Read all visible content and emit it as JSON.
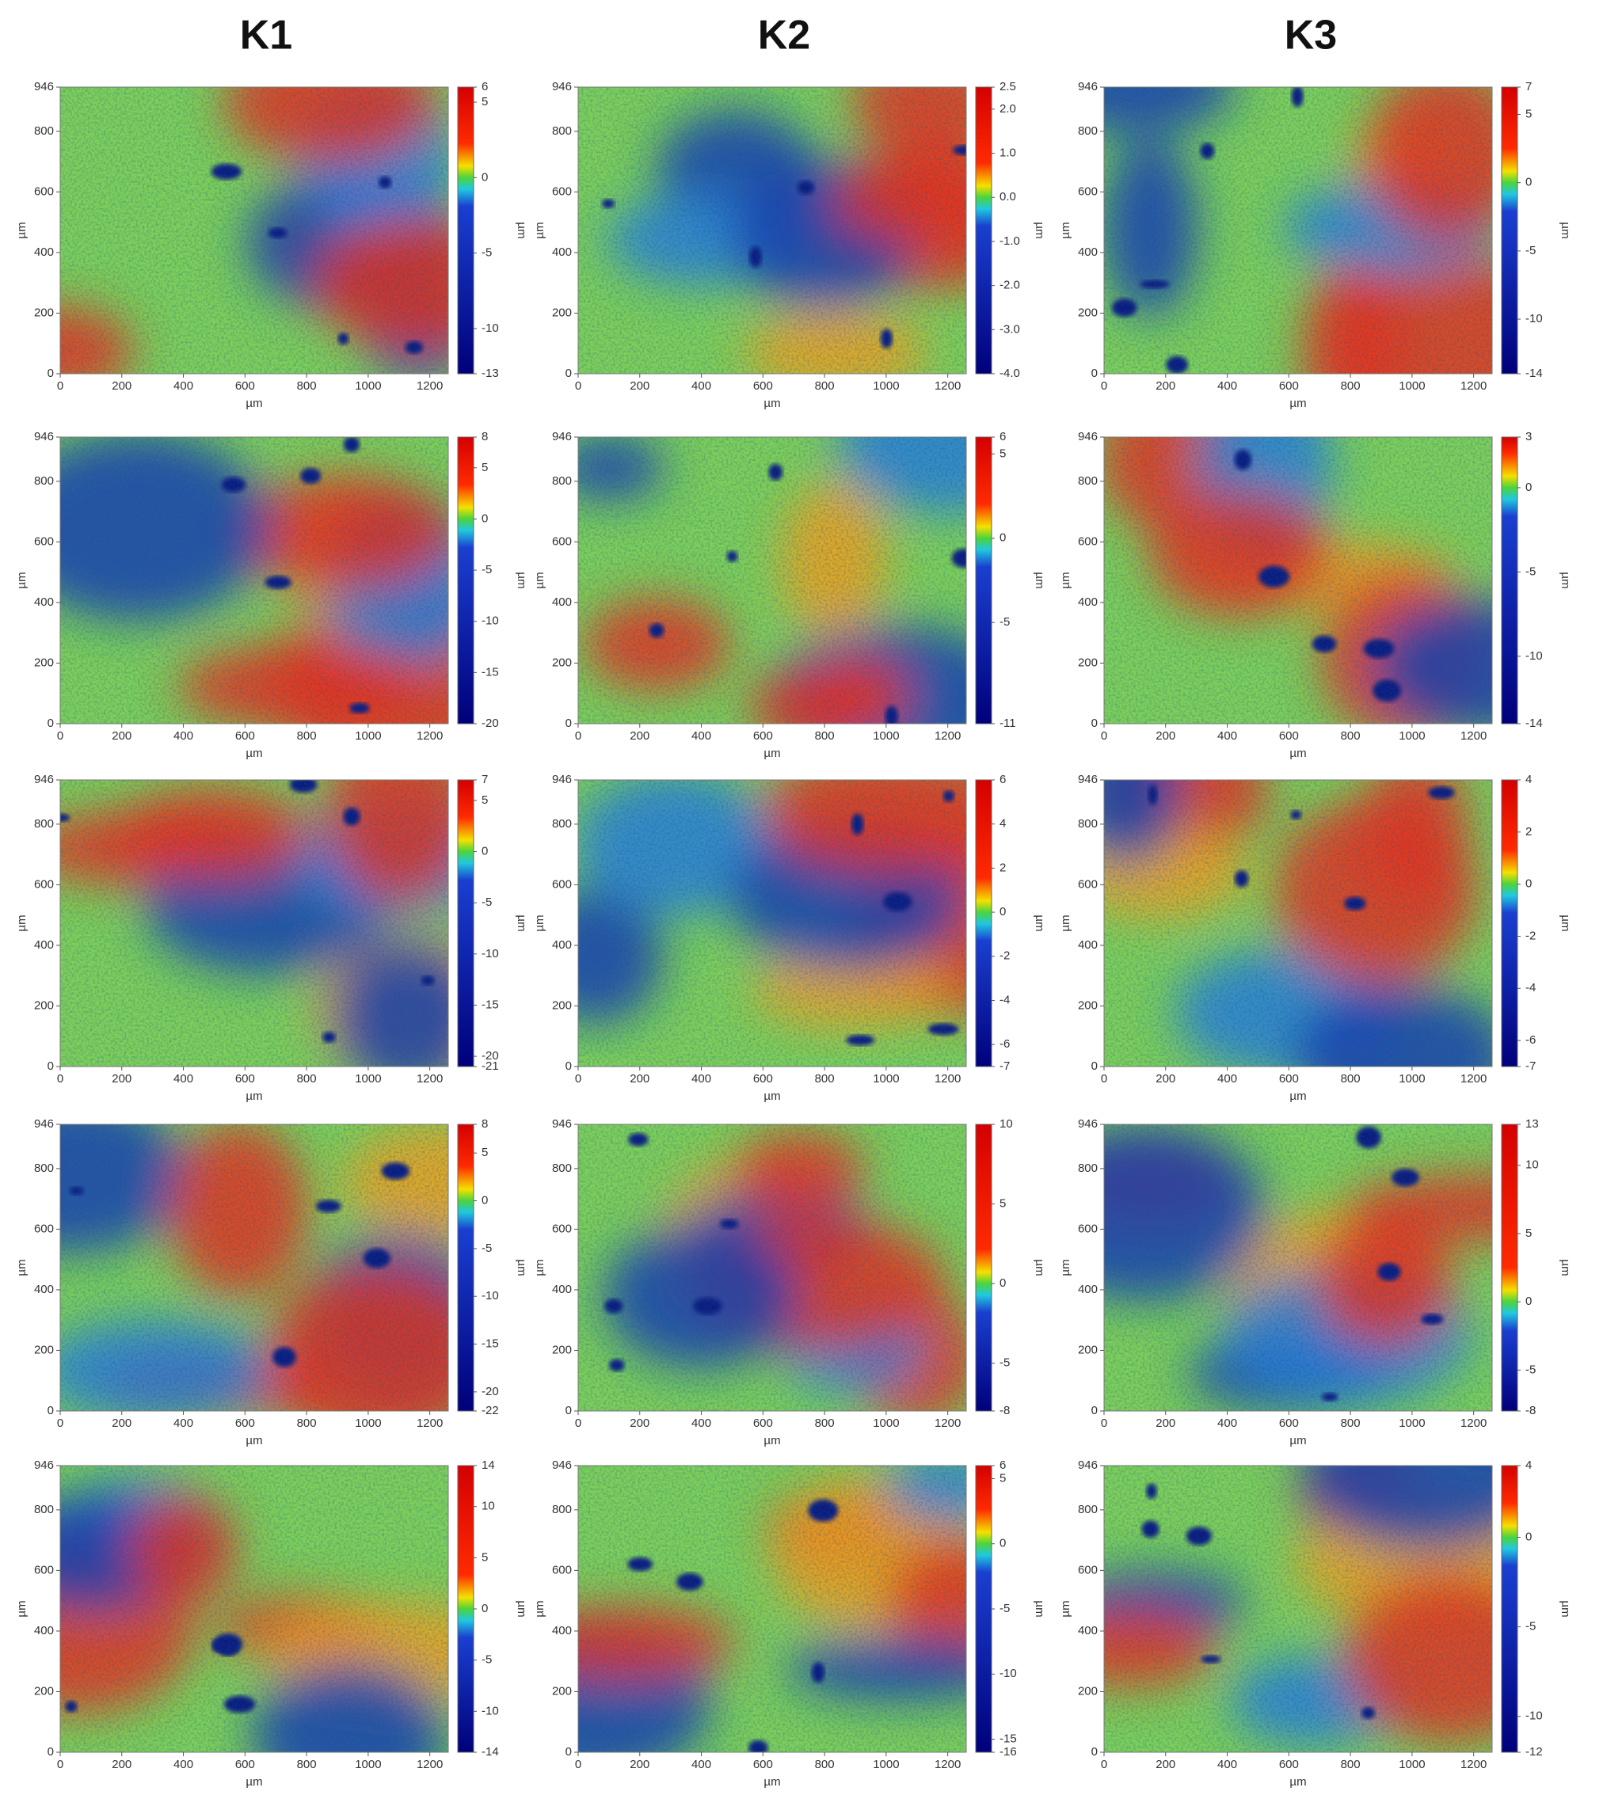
{
  "columns": [
    "K1",
    "K2",
    "K3"
  ],
  "chart_data": [
    {
      "type": "heatmap",
      "column": 0,
      "row": 0,
      "xlabel": "µm",
      "ylabel": "µm",
      "xlim": [
        0,
        1260
      ],
      "xticks": [
        0,
        200,
        400,
        600,
        800,
        1000,
        1200
      ],
      "ylim": [
        0,
        946
      ],
      "yticks": [
        0,
        200,
        400,
        600,
        800,
        946
      ],
      "colorbar": {
        "label": "µm",
        "lim": [
          -13,
          6
        ],
        "ticks": [
          6,
          5,
          0,
          -5,
          -10,
          -13
        ]
      }
    },
    {
      "type": "heatmap",
      "column": 1,
      "row": 0,
      "xlabel": "µm",
      "ylabel": "µm",
      "xlim": [
        0,
        1260
      ],
      "xticks": [
        0,
        200,
        400,
        600,
        800,
        1000,
        1200
      ],
      "ylim": [
        0,
        946
      ],
      "yticks": [
        0,
        200,
        400,
        600,
        800,
        946
      ],
      "colorbar": {
        "label": "µm",
        "lim": [
          -4,
          2.5
        ],
        "ticks": [
          2.5,
          {
            "value": 2,
            "label": "2.0"
          },
          {
            "value": 1,
            "label": "1.0"
          },
          {
            "value": 0,
            "label": "0.0"
          },
          {
            "value": -1,
            "label": "-1.0"
          },
          {
            "value": -2,
            "label": "-2.0"
          },
          {
            "value": -3,
            "label": "-3.0"
          },
          {
            "value": -4,
            "label": "-4.0"
          }
        ]
      }
    },
    {
      "type": "heatmap",
      "column": 2,
      "row": 0,
      "xlabel": "µm",
      "ylabel": "µm",
      "xlim": [
        0,
        1260
      ],
      "xticks": [
        0,
        200,
        400,
        600,
        800,
        1000,
        1200
      ],
      "ylim": [
        0,
        946
      ],
      "yticks": [
        0,
        200,
        400,
        600,
        800,
        946
      ],
      "colorbar": {
        "label": "µm",
        "lim": [
          -14,
          7
        ],
        "ticks": [
          7,
          5,
          0,
          -5,
          -10,
          -14
        ]
      }
    },
    {
      "type": "heatmap",
      "column": 0,
      "row": 1,
      "xlabel": "µm",
      "ylabel": "µm",
      "xlim": [
        0,
        1260
      ],
      "xticks": [
        0,
        200,
        400,
        600,
        800,
        1000,
        1200
      ],
      "ylim": [
        0,
        946
      ],
      "yticks": [
        0,
        200,
        400,
        600,
        800,
        946
      ],
      "colorbar": {
        "label": "µm",
        "lim": [
          -20,
          8
        ],
        "ticks": [
          8,
          5,
          0,
          -5,
          -10,
          -15,
          -20
        ]
      }
    },
    {
      "type": "heatmap",
      "column": 1,
      "row": 1,
      "xlabel": "µm",
      "ylabel": "µm",
      "xlim": [
        0,
        1260
      ],
      "xticks": [
        0,
        200,
        400,
        600,
        800,
        1000,
        1200
      ],
      "ylim": [
        0,
        946
      ],
      "yticks": [
        0,
        200,
        400,
        600,
        800,
        946
      ],
      "colorbar": {
        "label": "µm",
        "lim": [
          -11,
          6
        ],
        "ticks": [
          6,
          5,
          0,
          -5,
          -11
        ]
      }
    },
    {
      "type": "heatmap",
      "column": 2,
      "row": 1,
      "xlabel": "µm",
      "ylabel": "µm",
      "xlim": [
        0,
        1260
      ],
      "xticks": [
        0,
        200,
        400,
        600,
        800,
        1000,
        1200
      ],
      "ylim": [
        0,
        946
      ],
      "yticks": [
        0,
        200,
        400,
        600,
        800,
        946
      ],
      "colorbar": {
        "label": "µm",
        "lim": [
          -14,
          3
        ],
        "ticks": [
          3,
          0,
          -5,
          -10,
          -14
        ]
      }
    },
    {
      "type": "heatmap",
      "column": 0,
      "row": 2,
      "xlabel": "µm",
      "ylabel": "µm",
      "xlim": [
        0,
        1260
      ],
      "xticks": [
        0,
        200,
        400,
        600,
        800,
        1000,
        1200
      ],
      "ylim": [
        0,
        946
      ],
      "yticks": [
        0,
        200,
        400,
        600,
        800,
        946
      ],
      "colorbar": {
        "label": "µm",
        "lim": [
          -21,
          7
        ],
        "ticks": [
          7,
          5,
          0,
          -5,
          -10,
          -15,
          -20,
          -21
        ]
      }
    },
    {
      "type": "heatmap",
      "column": 1,
      "row": 2,
      "xlabel": "µm",
      "ylabel": "µm",
      "xlim": [
        0,
        1260
      ],
      "xticks": [
        0,
        200,
        400,
        600,
        800,
        1000,
        1200
      ],
      "ylim": [
        0,
        946
      ],
      "yticks": [
        0,
        200,
        400,
        600,
        800,
        946
      ],
      "colorbar": {
        "label": "µm",
        "lim": [
          -7,
          6
        ],
        "ticks": [
          6,
          4,
          2,
          0,
          -2,
          -4,
          -6,
          -7
        ]
      }
    },
    {
      "type": "heatmap",
      "column": 2,
      "row": 2,
      "xlabel": "µm",
      "ylabel": "µm",
      "xlim": [
        0,
        1260
      ],
      "xticks": [
        0,
        200,
        400,
        600,
        800,
        1000,
        1200
      ],
      "ylim": [
        0,
        946
      ],
      "yticks": [
        0,
        200,
        400,
        600,
        800,
        946
      ],
      "colorbar": {
        "label": "µm",
        "lim": [
          -7,
          4
        ],
        "ticks": [
          4,
          2,
          0,
          -2,
          -4,
          -6,
          -7
        ]
      }
    },
    {
      "type": "heatmap",
      "column": 0,
      "row": 3,
      "xlabel": "µm",
      "ylabel": "µm",
      "xlim": [
        0,
        1260
      ],
      "xticks": [
        0,
        200,
        400,
        600,
        800,
        1000,
        1200
      ],
      "ylim": [
        0,
        946
      ],
      "yticks": [
        0,
        200,
        400,
        600,
        800,
        946
      ],
      "colorbar": {
        "label": "µm",
        "lim": [
          -22,
          8
        ],
        "ticks": [
          8,
          5,
          0,
          -5,
          -10,
          -15,
          -20,
          -22
        ]
      }
    },
    {
      "type": "heatmap",
      "column": 1,
      "row": 3,
      "xlabel": "µm",
      "ylabel": "µm",
      "xlim": [
        0,
        1260
      ],
      "xticks": [
        0,
        200,
        400,
        600,
        800,
        1000,
        1200
      ],
      "ylim": [
        0,
        946
      ],
      "yticks": [
        0,
        200,
        400,
        600,
        800,
        946
      ],
      "colorbar": {
        "label": "µm",
        "lim": [
          -8,
          10
        ],
        "ticks": [
          10,
          5,
          0,
          -5,
          -8
        ]
      }
    },
    {
      "type": "heatmap",
      "column": 2,
      "row": 3,
      "xlabel": "µm",
      "ylabel": "µm",
      "xlim": [
        0,
        1260
      ],
      "xticks": [
        0,
        200,
        400,
        600,
        800,
        1000,
        1200
      ],
      "ylim": [
        0,
        946
      ],
      "yticks": [
        0,
        200,
        400,
        600,
        800,
        946
      ],
      "colorbar": {
        "label": "µm",
        "lim": [
          -8,
          13
        ],
        "ticks": [
          13,
          10,
          5,
          0,
          -5,
          -8
        ]
      }
    },
    {
      "type": "heatmap",
      "column": 0,
      "row": 4,
      "xlabel": "µm",
      "ylabel": "µm",
      "xlim": [
        0,
        1260
      ],
      "xticks": [
        0,
        200,
        400,
        600,
        800,
        1000,
        1200
      ],
      "ylim": [
        0,
        946
      ],
      "yticks": [
        0,
        200,
        400,
        600,
        800,
        946
      ],
      "colorbar": {
        "label": "µm",
        "lim": [
          -14,
          14
        ],
        "ticks": [
          14,
          10,
          5,
          0,
          -5,
          -10,
          -14
        ]
      }
    },
    {
      "type": "heatmap",
      "column": 1,
      "row": 4,
      "xlabel": "µm",
      "ylabel": "µm",
      "xlim": [
        0,
        1260
      ],
      "xticks": [
        0,
        200,
        400,
        600,
        800,
        1000,
        1200
      ],
      "ylim": [
        0,
        946
      ],
      "yticks": [
        0,
        200,
        400,
        600,
        800,
        946
      ],
      "colorbar": {
        "label": "µm",
        "lim": [
          -16,
          6
        ],
        "ticks": [
          6,
          5,
          0,
          -5,
          -10,
          -15,
          -16
        ]
      }
    },
    {
      "type": "heatmap",
      "column": 2,
      "row": 4,
      "xlabel": "µm",
      "ylabel": "µm",
      "xlim": [
        0,
        1260
      ],
      "xticks": [
        0,
        200,
        400,
        600,
        800,
        1000,
        1200
      ],
      "ylim": [
        0,
        946
      ],
      "yticks": [
        0,
        200,
        400,
        600,
        800,
        946
      ],
      "colorbar": {
        "label": "µm",
        "lim": [
          -12,
          4
        ],
        "ticks": [
          4,
          0,
          -5,
          -10,
          -12
        ]
      }
    }
  ]
}
